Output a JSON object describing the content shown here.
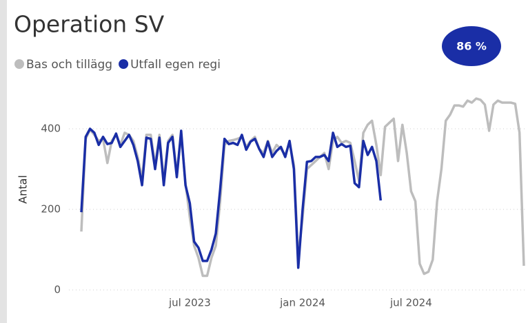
{
  "chart_data": {
    "type": "line",
    "title": "Operation SV",
    "badge": "86 %",
    "ylabel": "Antal",
    "categories": [
      null,
      null,
      null,
      null,
      null,
      null,
      null,
      null,
      null,
      null,
      null,
      null,
      null,
      null,
      null,
      null,
      null,
      null,
      null,
      null,
      null,
      null,
      null,
      null,
      null,
      "jul 2023",
      null,
      null,
      null,
      null,
      null,
      null,
      null,
      null,
      null,
      null,
      null,
      null,
      null,
      null,
      null,
      null,
      null,
      null,
      null,
      null,
      null,
      null,
      null,
      null,
      null,
      "jan 2024",
      null,
      null,
      null,
      null,
      null,
      null,
      null,
      null,
      null,
      null,
      null,
      null,
      null,
      null,
      null,
      null,
      null,
      null,
      null,
      null,
      null,
      null,
      null,
      null,
      "jul 2024",
      null,
      null,
      null,
      null,
      null,
      null,
      null,
      null,
      null,
      null,
      null,
      null,
      null,
      null,
      null,
      null,
      null,
      null,
      null,
      null,
      null,
      null,
      null,
      null,
      null,
      null
    ],
    "series": [
      {
        "name": "Bas och tillägg",
        "color": "#bdbdbd",
        "values": [
          145,
          375,
          398,
          385,
          370,
          375,
          315,
          370,
          385,
          360,
          390,
          385,
          370,
          330,
          275,
          385,
          385,
          310,
          385,
          270,
          370,
          385,
          290,
          385,
          265,
          180,
          110,
          80,
          35,
          35,
          80,
          110,
          220,
          360,
          370,
          372,
          375,
          380,
          355,
          370,
          380,
          350,
          340,
          370,
          340,
          360,
          350,
          335,
          365,
          310,
          80,
          180,
          300,
          310,
          320,
          330,
          340,
          300,
          370,
          380,
          365,
          370,
          365,
          320,
          270,
          390,
          410,
          420,
          360,
          285,
          405,
          415,
          425,
          320,
          410,
          340,
          245,
          220,
          65,
          40,
          45,
          75,
          220,
          300,
          420,
          435,
          458,
          458,
          455,
          470,
          465,
          475,
          472,
          460,
          395,
          460,
          470,
          465,
          465,
          465,
          462,
          390,
          60
        ]
      },
      {
        "name": "Utfall egen regi",
        "color": "#1a2ea6",
        "values": [
          193,
          380,
          400,
          390,
          360,
          380,
          362,
          365,
          388,
          355,
          370,
          385,
          360,
          320,
          260,
          378,
          375,
          300,
          378,
          260,
          365,
          380,
          280,
          395,
          260,
          215,
          120,
          105,
          72,
          72,
          100,
          140,
          250,
          375,
          362,
          365,
          360,
          385,
          348,
          368,
          375,
          350,
          330,
          368,
          330,
          345,
          355,
          330,
          370,
          300,
          55,
          200,
          318,
          320,
          330,
          330,
          335,
          320,
          390,
          355,
          362,
          355,
          358,
          265,
          255,
          370,
          335,
          355,
          320,
          222,
          null,
          null,
          null,
          null,
          null,
          null,
          null,
          null,
          null,
          null,
          null,
          null,
          null,
          null,
          null,
          null,
          null,
          null,
          null,
          null,
          null,
          null,
          null,
          null,
          null,
          null,
          null,
          null,
          null,
          null,
          null,
          null,
          null
        ]
      }
    ],
    "ylim": [
      0,
      500
    ],
    "yticks": [
      0,
      200,
      400
    ],
    "grid": true,
    "legend": "top-left"
  }
}
